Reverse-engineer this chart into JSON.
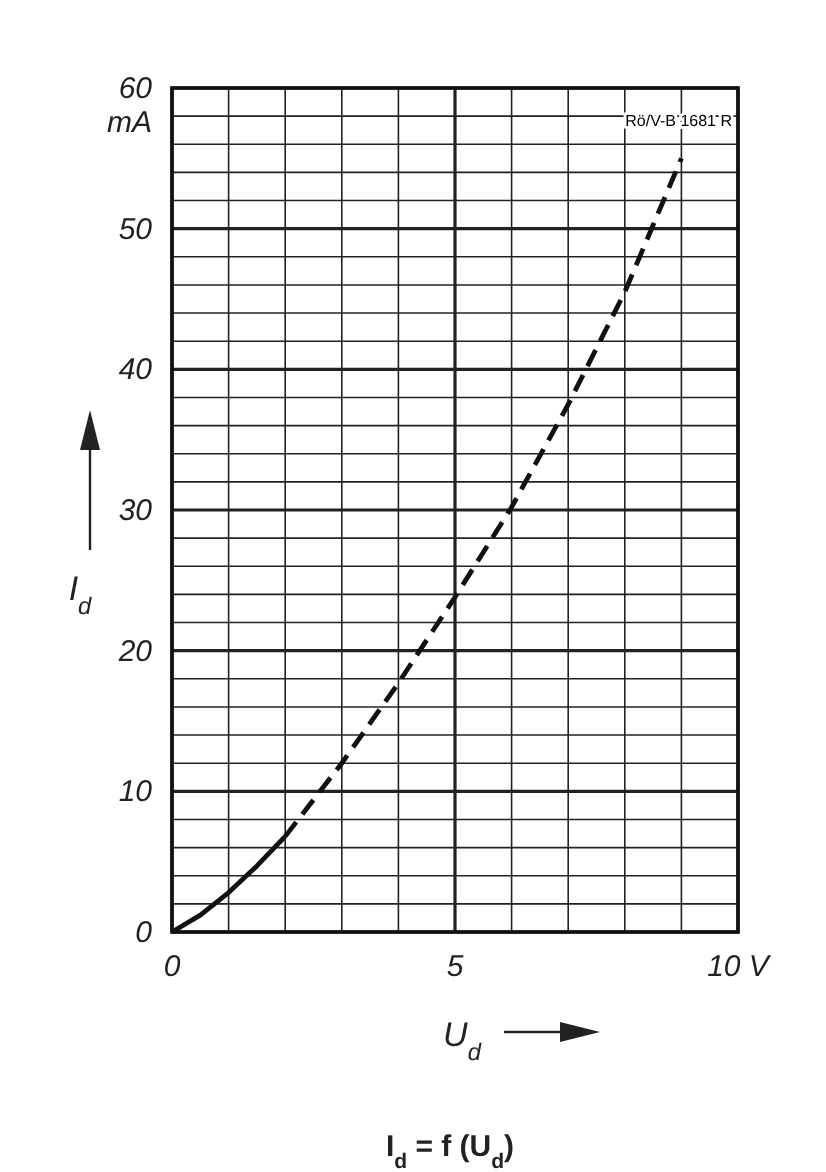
{
  "chart_data": {
    "type": "line",
    "title": "I$_{d}$ = f (U$_{d}$)",
    "xlabel": "U$_{d}$",
    "ylabel": "I$_{d}$",
    "annotations": [
      "mA",
      "Rö/V-B 1681 R"
    ],
    "xlim": [
      0,
      10
    ],
    "ylim": [
      0,
      60
    ],
    "xticks": [
      0,
      {
        "value": 1,
        "label": null
      },
      {
        "value": 2,
        "label": null
      },
      {
        "value": 3,
        "label": null
      },
      {
        "value": 4,
        "label": null
      },
      5,
      {
        "value": 6,
        "label": null
      },
      {
        "value": 7,
        "label": null
      },
      {
        "value": 8,
        "label": null
      },
      {
        "value": 9,
        "label": null
      },
      {
        "value": 10,
        "label": "10 V"
      }
    ],
    "yticks": [
      0,
      {
        "value": 2,
        "label": null
      },
      {
        "value": 4,
        "label": null
      },
      {
        "value": 6,
        "label": null
      },
      {
        "value": 8,
        "label": null
      },
      10,
      {
        "value": 12,
        "label": null
      },
      {
        "value": 14,
        "label": null
      },
      {
        "value": 16,
        "label": null
      },
      {
        "value": 18,
        "label": null
      },
      20,
      {
        "value": 22,
        "label": null
      },
      {
        "value": 24,
        "label": null
      },
      {
        "value": 26,
        "label": null
      },
      {
        "value": 28,
        "label": null
      },
      30,
      {
        "value": 32,
        "label": null
      },
      {
        "value": 34,
        "label": null
      },
      {
        "value": 36,
        "label": null
      },
      {
        "value": 38,
        "label": null
      },
      40,
      {
        "value": 42,
        "label": null
      },
      {
        "value": 44,
        "label": null
      },
      {
        "value": 46,
        "label": null
      },
      {
        "value": 48,
        "label": null
      },
      50,
      {
        "value": 52,
        "label": null
      },
      {
        "value": 54,
        "label": null
      },
      {
        "value": 56,
        "label": null
      },
      {
        "value": 58,
        "label": null
      },
      60
    ],
    "grid": true,
    "series": [
      {
        "color": "#111111",
        "line_style": "solid",
        "x": [
          0,
          0.5,
          1,
          1.5,
          2
        ],
        "values": [
          0,
          1.2,
          2.8,
          4.7,
          6.8
        ]
      },
      {
        "color": "#111111",
        "line_style": "dashed",
        "x": [
          2,
          3,
          4,
          5,
          6,
          7,
          8,
          9
        ],
        "values": [
          6.8,
          12,
          17.7,
          23.8,
          30.2,
          37.5,
          45.5,
          55
        ]
      }
    ]
  }
}
